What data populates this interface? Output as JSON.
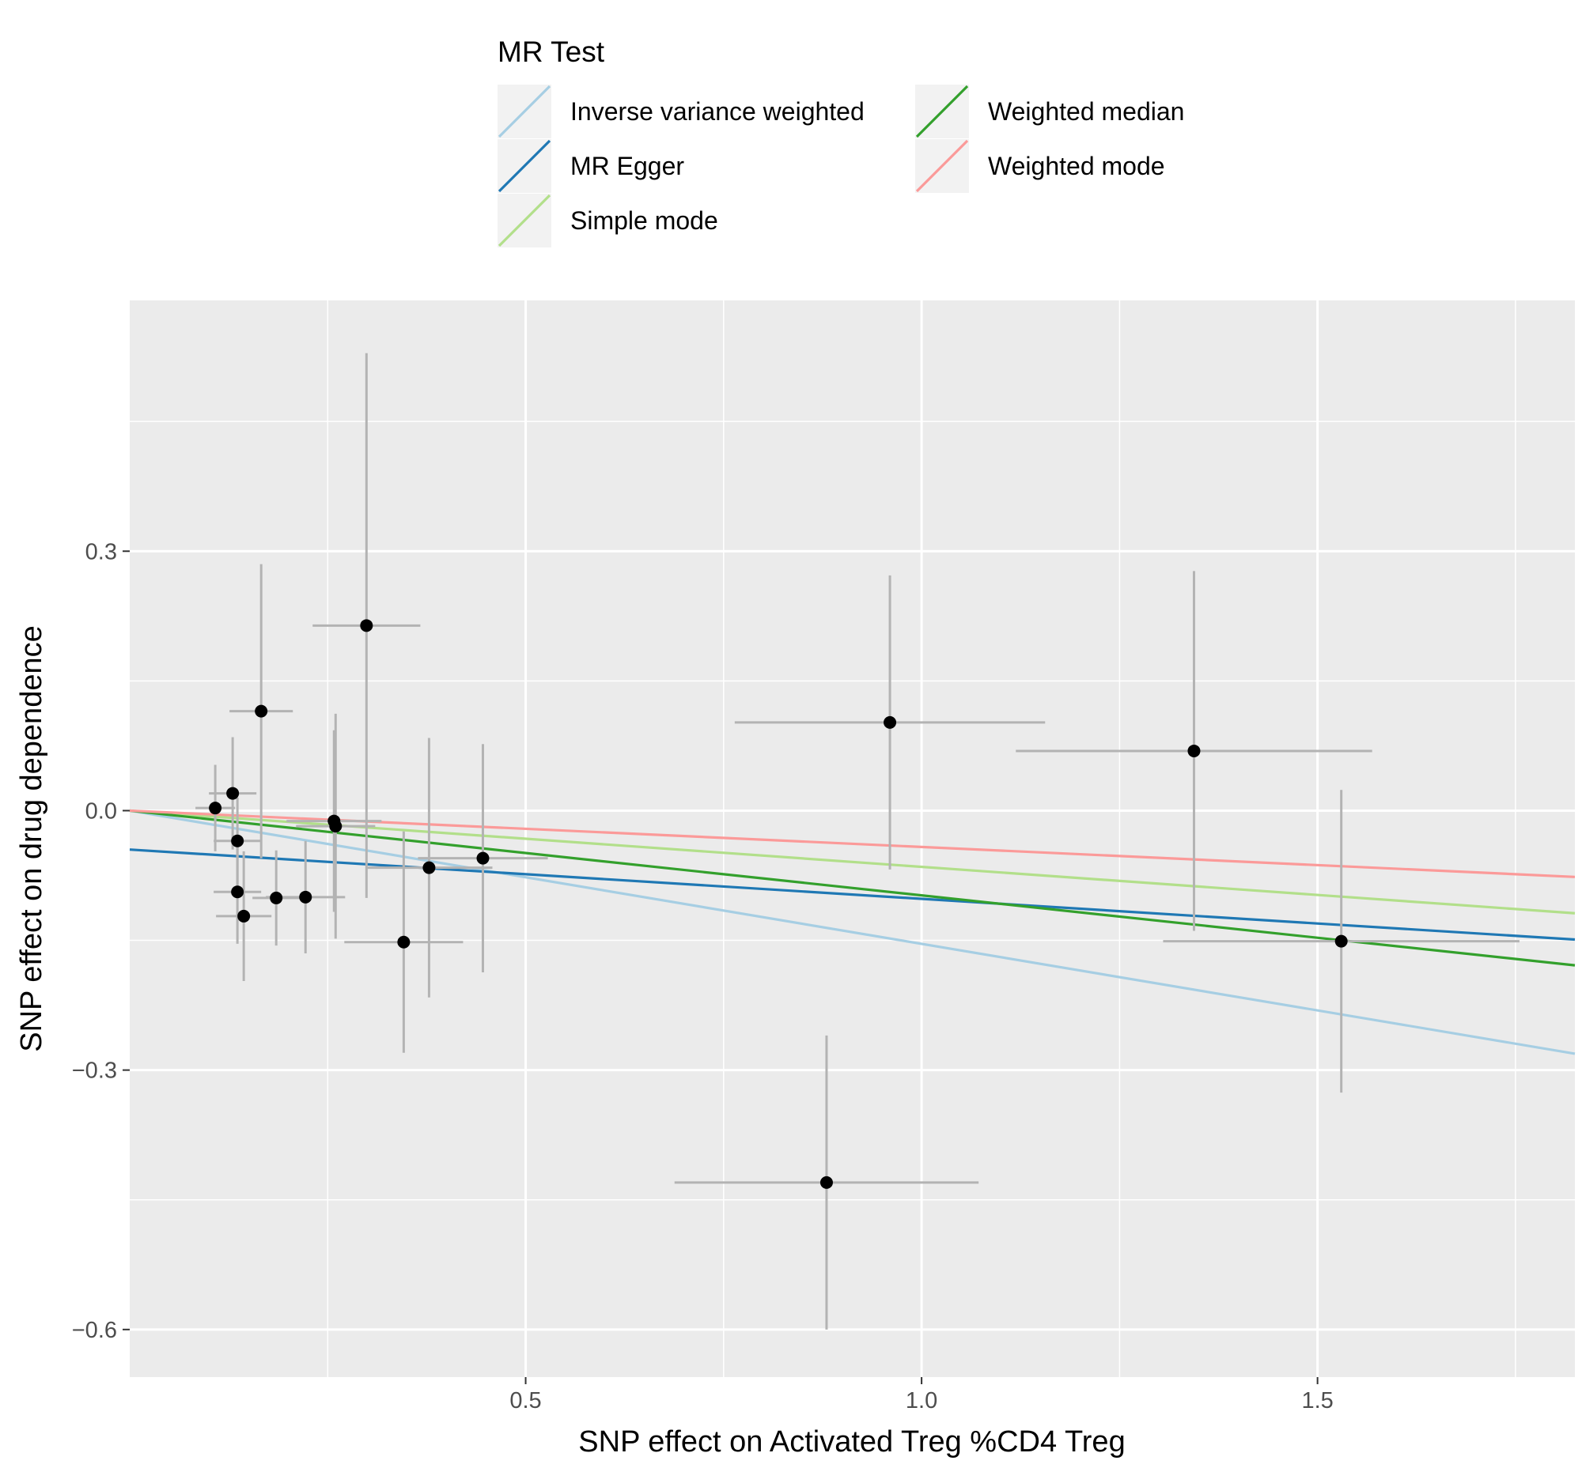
{
  "chart_data": {
    "type": "scatter",
    "xlabel": "SNP effect on Activated Treg %CD4 Treg",
    "ylabel": "SNP effect on drug dependence",
    "xlim": [
      0.0,
      1.825
    ],
    "ylim": [
      -0.655,
      0.59
    ],
    "x_ticks": [
      0.5,
      1.0,
      1.5
    ],
    "x_tick_labels": [
      "0.5",
      "1.0",
      "1.5"
    ],
    "y_ticks": [
      0.3,
      0.0,
      -0.3,
      -0.6
    ],
    "y_tick_labels": [
      "0.3",
      "0.0",
      "−0.3",
      "−0.6"
    ],
    "points": [
      {
        "x": 0.108,
        "y": 0.003,
        "xerr": 0.025,
        "yerr": 0.05
      },
      {
        "x": 0.13,
        "y": 0.02,
        "xerr": 0.03,
        "yerr": 0.065
      },
      {
        "x": 0.136,
        "y": -0.035,
        "xerr": 0.03,
        "yerr": 0.05
      },
      {
        "x": 0.136,
        "y": -0.094,
        "xerr": 0.03,
        "yerr": 0.06
      },
      {
        "x": 0.144,
        "y": -0.122,
        "xerr": 0.035,
        "yerr": 0.075
      },
      {
        "x": 0.166,
        "y": 0.115,
        "xerr": 0.04,
        "yerr": 0.17
      },
      {
        "x": 0.185,
        "y": -0.101,
        "xerr": 0.03,
        "yerr": 0.055
      },
      {
        "x": 0.222,
        "y": -0.1,
        "xerr": 0.05,
        "yerr": 0.065
      },
      {
        "x": 0.258,
        "y": -0.012,
        "xerr": 0.06,
        "yerr": 0.105
      },
      {
        "x": 0.26,
        "y": -0.018,
        "xerr": 0.05,
        "yerr": 0.13
      },
      {
        "x": 0.299,
        "y": 0.214,
        "xerr": 0.068,
        "yerr": 0.315
      },
      {
        "x": 0.346,
        "y": -0.152,
        "xerr": 0.075,
        "yerr": 0.128
      },
      {
        "x": 0.378,
        "y": -0.066,
        "xerr": 0.08,
        "yerr": 0.15
      },
      {
        "x": 0.446,
        "y": -0.055,
        "xerr": 0.082,
        "yerr": 0.132
      },
      {
        "x": 0.88,
        "y": -0.43,
        "xerr": 0.192,
        "yerr": 0.17
      },
      {
        "x": 0.96,
        "y": 0.102,
        "xerr": 0.196,
        "yerr": 0.17
      },
      {
        "x": 1.344,
        "y": 0.069,
        "xerr": 0.225,
        "yerr": 0.208
      },
      {
        "x": 1.53,
        "y": -0.151,
        "xerr": 0.225,
        "yerr": 0.175
      }
    ],
    "series": [
      {
        "name": "Inverse variance weighted",
        "color": "#a6cee3",
        "intercept": 0.0,
        "slope": -0.154
      },
      {
        "name": "MR Egger",
        "color": "#1f78b4",
        "intercept": -0.045,
        "slope": -0.057
      },
      {
        "name": "Simple mode",
        "color": "#b2df8a",
        "intercept": 0.0,
        "slope": -0.065
      },
      {
        "name": "Weighted median",
        "color": "#33a02c",
        "intercept": 0.0,
        "slope": -0.098
      },
      {
        "name": "Weighted mode",
        "color": "#fb9a99",
        "intercept": 0.0,
        "slope": -0.042
      }
    ],
    "legend": {
      "title": "MR Test",
      "position": "top"
    },
    "grid": true
  }
}
